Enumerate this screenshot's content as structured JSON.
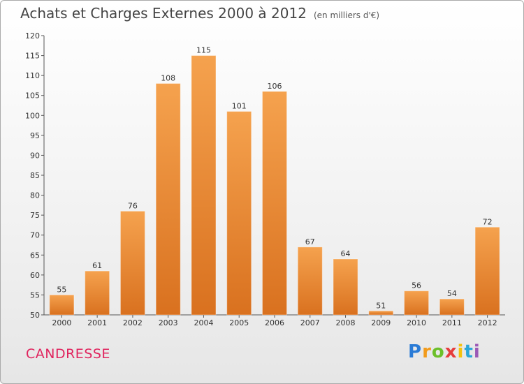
{
  "header": {
    "title": "Achats et Charges Externes 2000 à 2012",
    "subtitle": "(en milliers d'€)"
  },
  "footer": {
    "commune": "CANDRESSE",
    "logo": {
      "p": "P",
      "r": "r",
      "o": "o",
      "x": "x",
      "i1": "i",
      "t": "t",
      "i2": "i"
    }
  },
  "chart_data": {
    "type": "bar",
    "title": "Achats et Charges Externes 2000 à 2012",
    "subtitle": "(en milliers d'€)",
    "categories": [
      "2000",
      "2001",
      "2002",
      "2003",
      "2004",
      "2005",
      "2006",
      "2007",
      "2008",
      "2009",
      "2010",
      "2011",
      "2012"
    ],
    "values": [
      55,
      61,
      76,
      108,
      115,
      101,
      106,
      67,
      64,
      51,
      56,
      54,
      72
    ],
    "ylim": [
      50,
      120
    ],
    "yticks": [
      50,
      55,
      60,
      65,
      70,
      75,
      80,
      85,
      90,
      95,
      100,
      105,
      110,
      115,
      120
    ],
    "grid": false,
    "bar_color_top": "#f5a24e",
    "bar_color_bottom": "#d9711f"
  }
}
